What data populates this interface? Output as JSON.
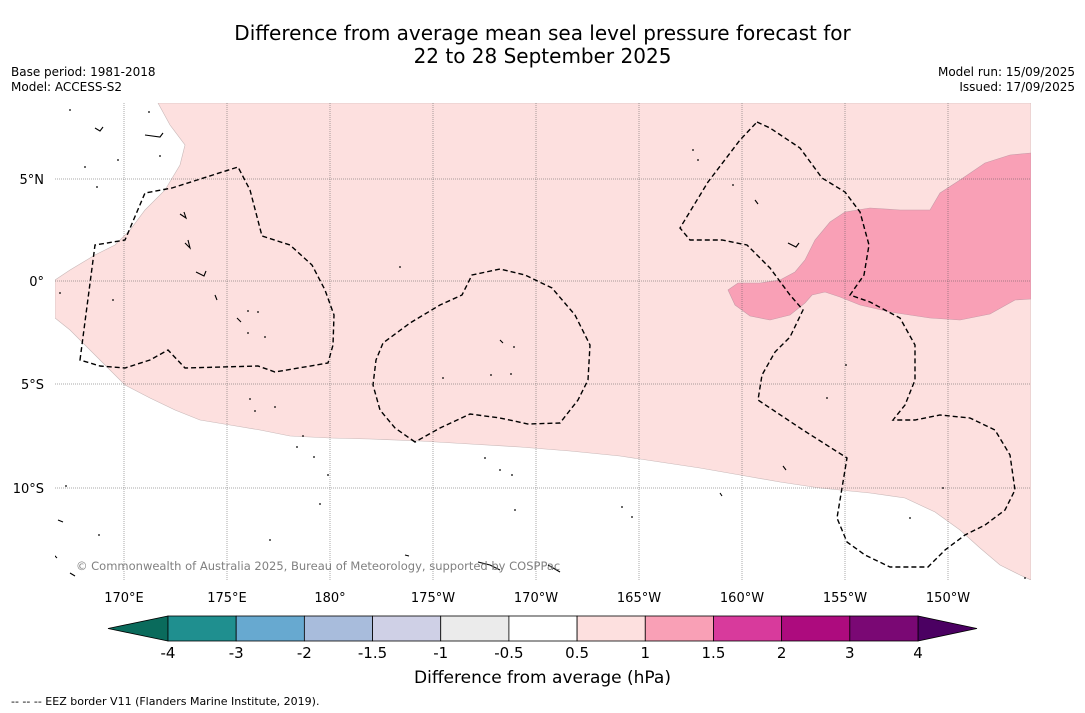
{
  "title_line1": "Difference from average mean sea level pressure forecast for",
  "title_line2": "22 to 28 September 2025",
  "base_period": "Base period: 1981-2018",
  "model": "Model: ACCESS-S2",
  "model_run": "Model run: 15/09/2025",
  "issued": "Issued: 17/09/2025",
  "copyright": "© Commonwealth of Australia 2025, Bureau of Meteorology, supported by COSPPac",
  "lon_labels": [
    "170°E",
    "175°E",
    "180°",
    "175°W",
    "170°W",
    "165°W",
    "160°W",
    "155°W",
    "150°W"
  ],
  "lat_labels": [
    "5°N",
    "0°",
    "5°S",
    "10°S"
  ],
  "colorbar": {
    "ticks": [
      "-4",
      "-3",
      "-2",
      "-1.5",
      "-1",
      "-0.5",
      "0.5",
      "1",
      "1.5",
      "2",
      "3",
      "4"
    ],
    "colors": [
      "#1f8f8f",
      "#67a9d0",
      "#a8bcdc",
      "#cfd0e6",
      "#ebebeb",
      "#ffffff",
      "#fde0df",
      "#f9a0b6",
      "#d83a9c",
      "#ad0b7e",
      "#7a0874"
    ],
    "under_color": "#0a6b5c",
    "over_color": "#4b0062",
    "label": "Difference from average (hPa)"
  },
  "footer": "--  --  -- EEZ border V11 (Flanders Marine Institute, 2019)."
}
